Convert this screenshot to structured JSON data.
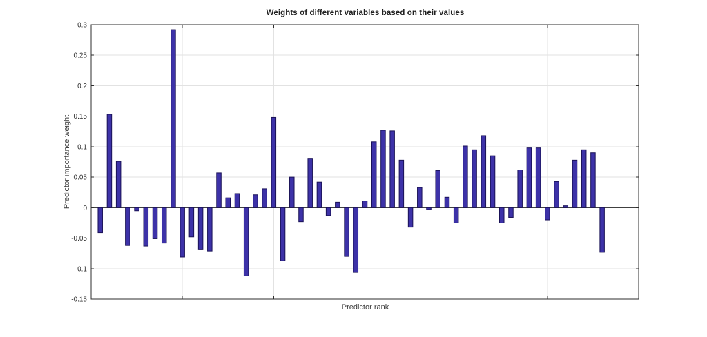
{
  "chart_data": {
    "type": "bar",
    "title": "Weights of different variables based on their values",
    "xlabel": "Predictor rank",
    "ylabel": "Predictor importance weight",
    "categories_note": "bars are predictor ranks 1..56, x tick marks at 10,20,30,40,50 (unlabeled)",
    "values": [
      -0.041,
      0.153,
      0.076,
      -0.062,
      -0.005,
      -0.063,
      -0.051,
      -0.058,
      0.292,
      -0.081,
      -0.048,
      -0.069,
      -0.071,
      0.057,
      0.016,
      0.023,
      -0.112,
      0.021,
      0.031,
      0.148,
      -0.087,
      0.05,
      -0.023,
      0.081,
      0.042,
      -0.013,
      0.009,
      -0.08,
      -0.106,
      0.011,
      0.108,
      0.127,
      0.126,
      0.078,
      -0.032,
      0.033,
      -0.003,
      0.061,
      0.017,
      -0.025,
      0.101,
      0.095,
      0.118,
      0.085,
      -0.025,
      -0.016,
      0.062,
      0.098,
      0.098,
      -0.02,
      0.043,
      0.003,
      0.078,
      0.095,
      0.09,
      -0.073
    ],
    "xlim": [
      0,
      60
    ],
    "ylim": [
      -0.15,
      0.3
    ],
    "yticks": [
      -0.15,
      -0.1,
      -0.05,
      0,
      0.05,
      0.1,
      0.15,
      0.2,
      0.25,
      0.3
    ],
    "ytick_labels": [
      "-0.15",
      "-0.1",
      "-0.05",
      "0",
      "0.05",
      "0.1",
      "0.15",
      "0.2",
      "0.25",
      "0.3"
    ],
    "xticks": [
      10,
      20,
      30,
      40,
      50
    ],
    "xtick_labels": [
      "",
      "",
      "",
      "",
      ""
    ],
    "grid": true,
    "legend": "none",
    "colors": {
      "bar_fill": "#3d32a8",
      "bar_edge": "#1a1257",
      "grid_line": "#e2e2e2",
      "axis_box": "#2e2e2e",
      "zero_line": "#404040",
      "background": "#ffffff"
    }
  }
}
